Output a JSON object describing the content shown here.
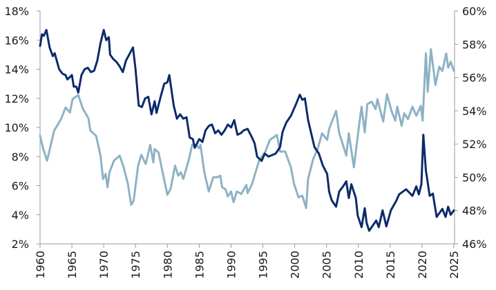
{
  "chart_data": {
    "type": "line",
    "title": "",
    "xlabel": "",
    "ylabel_left": "",
    "ylabel_right": "",
    "grid": false,
    "legend": "none",
    "xlim": [
      1960,
      2025
    ],
    "x_ticks": [
      "1960",
      "1965",
      "1970",
      "1975",
      "1980",
      "1985",
      "1990",
      "1995",
      "2000",
      "2005",
      "2010",
      "2015",
      "2020",
      "2025"
    ],
    "y_left": {
      "lim": [
        2,
        18
      ],
      "ticks": [
        "2%",
        "4%",
        "6%",
        "8%",
        "10%",
        "12%",
        "14%",
        "16%",
        "18%"
      ]
    },
    "y_right": {
      "lim": [
        46,
        60
      ],
      "ticks": [
        "46%",
        "48%",
        "50%",
        "52%",
        "54%",
        "56%",
        "58%",
        "60%"
      ]
    },
    "series": [
      {
        "axis": "left",
        "color": "#0b2a6b",
        "points": [
          [
            1960,
            15.6
          ],
          [
            1960.3,
            16.4
          ],
          [
            1960.6,
            16.3
          ],
          [
            1961,
            16.7
          ],
          [
            1961.5,
            15.5
          ],
          [
            1962,
            14.9
          ],
          [
            1962.3,
            15.1
          ],
          [
            1963,
            14.0
          ],
          [
            1963.5,
            13.7
          ],
          [
            1964,
            13.6
          ],
          [
            1964.3,
            13.3
          ],
          [
            1965,
            13.6
          ],
          [
            1965.3,
            12.8
          ],
          [
            1965.7,
            12.8
          ],
          [
            1966,
            12.4
          ],
          [
            1966.5,
            13.6
          ],
          [
            1967,
            14.0
          ],
          [
            1967.5,
            14.1
          ],
          [
            1968,
            13.8
          ],
          [
            1968.5,
            13.9
          ],
          [
            1969,
            14.6
          ],
          [
            1969.5,
            15.8
          ],
          [
            1970,
            16.7
          ],
          [
            1970.4,
            16.0
          ],
          [
            1970.8,
            16.2
          ],
          [
            1971,
            15.0
          ],
          [
            1971.5,
            14.7
          ],
          [
            1972,
            14.5
          ],
          [
            1972.5,
            14.2
          ],
          [
            1973,
            13.8
          ],
          [
            1973.5,
            14.6
          ],
          [
            1974,
            15.0
          ],
          [
            1974.6,
            15.5
          ],
          [
            1975,
            14.0
          ],
          [
            1975.5,
            11.5
          ],
          [
            1976,
            11.4
          ],
          [
            1976.5,
            12.0
          ],
          [
            1977,
            12.1
          ],
          [
            1977.5,
            10.9
          ],
          [
            1978,
            11.8
          ],
          [
            1978.3,
            11.0
          ],
          [
            1978.7,
            11.7
          ],
          [
            1979,
            12.2
          ],
          [
            1979.5,
            13.0
          ],
          [
            1980,
            13.1
          ],
          [
            1980.3,
            13.6
          ],
          [
            1981,
            11.5
          ],
          [
            1981.5,
            10.6
          ],
          [
            1982,
            10.9
          ],
          [
            1982.5,
            10.6
          ],
          [
            1983,
            10.7
          ],
          [
            1983.5,
            9.3
          ],
          [
            1984,
            9.2
          ],
          [
            1984.3,
            8.6
          ],
          [
            1985,
            9.2
          ],
          [
            1985.5,
            9.0
          ],
          [
            1986,
            9.8
          ],
          [
            1986.5,
            10.1
          ],
          [
            1987,
            10.2
          ],
          [
            1987.5,
            9.6
          ],
          [
            1988,
            9.8
          ],
          [
            1988.5,
            9.5
          ],
          [
            1989,
            9.8
          ],
          [
            1989.5,
            10.2
          ],
          [
            1990,
            10.0
          ],
          [
            1990.5,
            10.5
          ],
          [
            1991,
            9.5
          ],
          [
            1991.5,
            9.6
          ],
          [
            1992,
            9.8
          ],
          [
            1992.6,
            9.9
          ],
          [
            1993.3,
            9.3
          ],
          [
            1993.7,
            8.9
          ],
          [
            1994.1,
            8.0
          ],
          [
            1994.8,
            7.7
          ],
          [
            1995.3,
            8.2
          ],
          [
            1995.9,
            8.0
          ],
          [
            1997,
            8.2
          ],
          [
            1997.7,
            8.65
          ],
          [
            1998.1,
            9.7
          ],
          [
            1998.7,
            10.35
          ],
          [
            1999.4,
            10.8
          ],
          [
            2000.2,
            11.6
          ],
          [
            2000.8,
            12.25
          ],
          [
            2001.2,
            11.9
          ],
          [
            2001.6,
            12.0
          ],
          [
            2002.1,
            10.5
          ],
          [
            2003.1,
            8.65
          ],
          [
            2003.8,
            8.2
          ],
          [
            2004.4,
            7.4
          ],
          [
            2005.1,
            6.8
          ],
          [
            2005.4,
            5.6
          ],
          [
            2005.8,
            5.0
          ],
          [
            2006.5,
            4.55
          ],
          [
            2007.0,
            5.6
          ],
          [
            2007.6,
            5.95
          ],
          [
            2008.1,
            6.3
          ],
          [
            2008.5,
            5.15
          ],
          [
            2008.9,
            6.1
          ],
          [
            2009.6,
            5.15
          ],
          [
            2009.9,
            3.95
          ],
          [
            2010.5,
            3.15
          ],
          [
            2011.0,
            4.45
          ],
          [
            2011.3,
            3.45
          ],
          [
            2011.7,
            2.9
          ],
          [
            2012.8,
            3.6
          ],
          [
            2013.2,
            3.15
          ],
          [
            2013.8,
            4.3
          ],
          [
            2014.4,
            3.2
          ],
          [
            2015.1,
            4.3
          ],
          [
            2016.0,
            5.0
          ],
          [
            2016.4,
            5.4
          ],
          [
            2017.5,
            5.75
          ],
          [
            2018.5,
            5.3
          ],
          [
            2019.1,
            5.95
          ],
          [
            2019.5,
            5.4
          ],
          [
            2019.9,
            6.1
          ],
          [
            2020.2,
            9.5
          ],
          [
            2020.6,
            7.05
          ],
          [
            2021.2,
            5.3
          ],
          [
            2021.7,
            5.45
          ],
          [
            2022.3,
            3.85
          ],
          [
            2023.2,
            4.4
          ],
          [
            2023.7,
            3.85
          ],
          [
            2024.1,
            4.55
          ],
          [
            2024.5,
            4.0
          ],
          [
            2025,
            4.3
          ]
        ]
      },
      {
        "axis": "right",
        "color": "#8db2c4",
        "points": [
          [
            1960,
            52.5
          ],
          [
            1960.5,
            51.7
          ],
          [
            1961.1,
            51.0
          ],
          [
            1961.6,
            51.8
          ],
          [
            1962.2,
            52.8
          ],
          [
            1963.3,
            53.5
          ],
          [
            1964.0,
            54.2
          ],
          [
            1964.7,
            53.9
          ],
          [
            1965.1,
            54.7
          ],
          [
            1966.0,
            54.95
          ],
          [
            1966.7,
            54.15
          ],
          [
            1967.6,
            53.55
          ],
          [
            1967.9,
            52.8
          ],
          [
            1968.8,
            52.5
          ],
          [
            1969.5,
            51.3
          ],
          [
            1969.9,
            49.9
          ],
          [
            1970.3,
            50.2
          ],
          [
            1970.6,
            49.4
          ],
          [
            1970.9,
            50.3
          ],
          [
            1971.6,
            51.0
          ],
          [
            1972.5,
            51.3
          ],
          [
            1973.1,
            50.65
          ],
          [
            1973.8,
            49.6
          ],
          [
            1974.3,
            48.35
          ],
          [
            1974.7,
            48.6
          ],
          [
            1975.4,
            50.7
          ],
          [
            1975.9,
            51.35
          ],
          [
            1976.6,
            50.8
          ],
          [
            1977.3,
            51.95
          ],
          [
            1977.8,
            50.9
          ],
          [
            1978.0,
            51.7
          ],
          [
            1978.6,
            51.5
          ],
          [
            1979.3,
            50.2
          ],
          [
            1980.0,
            48.95
          ],
          [
            1980.5,
            49.3
          ],
          [
            1981.2,
            50.7
          ],
          [
            1981.7,
            50.1
          ],
          [
            1982.1,
            50.3
          ],
          [
            1982.5,
            49.9
          ],
          [
            1983.4,
            51.1
          ],
          [
            1983.9,
            51.95
          ],
          [
            1984.5,
            51.95
          ],
          [
            1985.0,
            51.75
          ],
          [
            1985.2,
            51.95
          ],
          [
            1985.8,
            50.3
          ],
          [
            1986.5,
            49.15
          ],
          [
            1987.2,
            50.0
          ],
          [
            1987.8,
            50.0
          ],
          [
            1988.3,
            50.1
          ],
          [
            1988.6,
            49.4
          ],
          [
            1989.1,
            49.3
          ],
          [
            1989.5,
            48.85
          ],
          [
            1990.0,
            49.15
          ],
          [
            1990.4,
            48.5
          ],
          [
            1990.9,
            49.15
          ],
          [
            1991.6,
            49.0
          ],
          [
            1992.4,
            49.55
          ],
          [
            1992.6,
            49.05
          ],
          [
            1993.3,
            49.6
          ],
          [
            1994.4,
            51.0
          ],
          [
            1995.4,
            51.55
          ],
          [
            1996.1,
            52.25
          ],
          [
            1997.2,
            52.55
          ],
          [
            1997.7,
            51.55
          ],
          [
            1998.5,
            51.55
          ],
          [
            1999.4,
            50.6
          ],
          [
            1999.9,
            49.6
          ],
          [
            2000.6,
            48.8
          ],
          [
            2001.2,
            48.9
          ],
          [
            2001.8,
            48.15
          ],
          [
            2002.1,
            49.9
          ],
          [
            2002.9,
            51.1
          ],
          [
            2003.6,
            51.7
          ],
          [
            2004.3,
            52.65
          ],
          [
            2005.1,
            52.25
          ],
          [
            2005.4,
            52.9
          ],
          [
            2006.0,
            53.5
          ],
          [
            2006.5,
            54.0
          ],
          [
            2007.0,
            52.65
          ],
          [
            2007.7,
            51.8
          ],
          [
            2008.1,
            51.3
          ],
          [
            2008.5,
            52.65
          ],
          [
            2009.3,
            50.6
          ],
          [
            2010.1,
            53.1
          ],
          [
            2010.5,
            54.25
          ],
          [
            2011.0,
            52.7
          ],
          [
            2011.4,
            54.4
          ],
          [
            2012.1,
            54.55
          ],
          [
            2012.7,
            54.1
          ],
          [
            2013.0,
            54.7
          ],
          [
            2013.9,
            53.35
          ],
          [
            2014.5,
            55.0
          ],
          [
            2015.2,
            54.0
          ],
          [
            2015.8,
            53.4
          ],
          [
            2016.1,
            54.25
          ],
          [
            2016.8,
            53.1
          ],
          [
            2017.2,
            53.85
          ],
          [
            2017.8,
            53.5
          ],
          [
            2018.5,
            54.25
          ],
          [
            2019.1,
            53.7
          ],
          [
            2019.8,
            54.3
          ],
          [
            2020.1,
            53.4
          ],
          [
            2020.6,
            57.45
          ],
          [
            2020.9,
            55.15
          ],
          [
            2021.4,
            57.7
          ],
          [
            2022.1,
            55.55
          ],
          [
            2022.7,
            56.65
          ],
          [
            2023.2,
            56.4
          ],
          [
            2023.8,
            57.45
          ],
          [
            2024.1,
            56.6
          ],
          [
            2024.5,
            56.95
          ],
          [
            2025,
            56.4
          ]
        ]
      }
    ]
  }
}
